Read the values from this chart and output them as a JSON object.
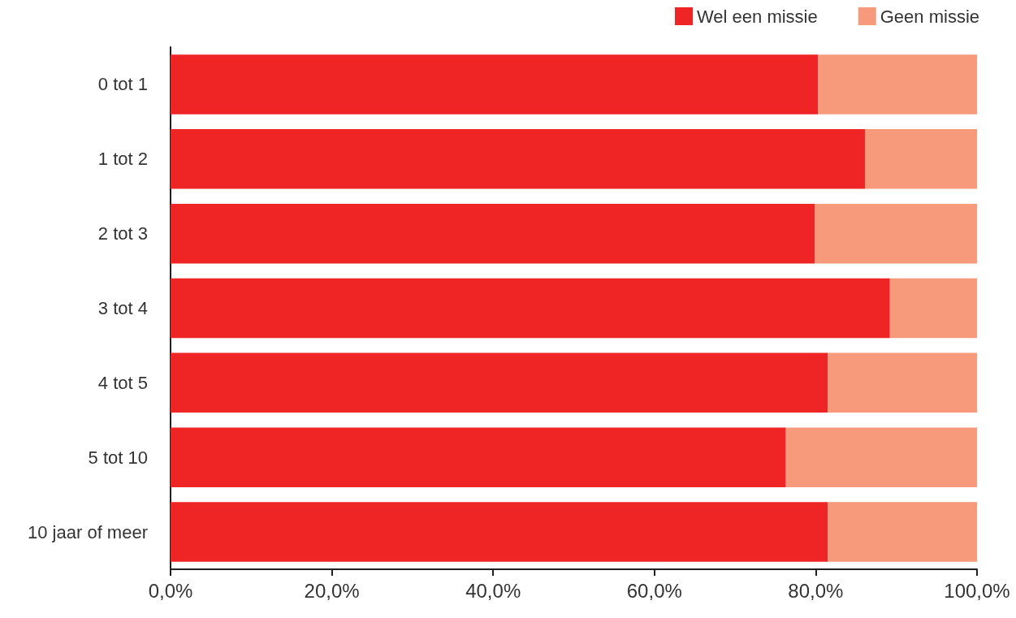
{
  "chart_data": {
    "type": "bar",
    "orientation": "horizontal",
    "stacked": true,
    "categories": [
      "0 tot 1",
      "1 tot 2",
      "2 tot 3",
      "3 tot 4",
      "4 tot 5",
      "5 tot 10",
      "10 jaar of meer"
    ],
    "series": [
      {
        "name": "Wel een missie",
        "color": "#ee2524",
        "values": [
          80.3,
          86.1,
          79.9,
          89.2,
          81.5,
          76.3,
          81.5
        ]
      },
      {
        "name": "Geen missie",
        "color": "#f69a7b",
        "values": [
          19.7,
          13.9,
          20.1,
          10.8,
          18.5,
          23.7,
          18.5
        ]
      }
    ],
    "xlim": [
      0,
      100
    ],
    "xticks": [
      {
        "value": 0,
        "label": "0,0%"
      },
      {
        "value": 20,
        "label": "20,0%"
      },
      {
        "value": 40,
        "label": "40,0%"
      },
      {
        "value": 60,
        "label": "60,0%"
      },
      {
        "value": 80,
        "label": "80,0%"
      },
      {
        "value": 100,
        "label": "100,0%"
      }
    ],
    "grid": false,
    "legend": "top right"
  }
}
